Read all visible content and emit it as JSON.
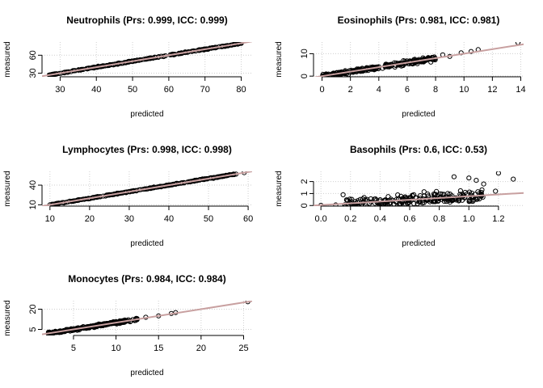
{
  "chart_data": [
    {
      "type": "scatter",
      "title": "Neutrophils (Prs: 0.999, ICC: 0.999)",
      "xlabel": "predicted",
      "ylabel": "measured",
      "xlim": [
        25,
        83
      ],
      "ylim": [
        24,
        82
      ],
      "xticks": [
        30,
        40,
        50,
        60,
        70,
        80
      ],
      "yticks": [
        30,
        60
      ],
      "grid": true,
      "fit_line": [
        [
          25,
          25
        ],
        [
          83,
          83
        ]
      ],
      "point_band": {
        "x_range": [
          27,
          80
        ],
        "slope": 1.0,
        "intercept": 0.0,
        "spread": 0.6
      },
      "outliers": [
        [
          27,
          27
        ],
        [
          31,
          31
        ],
        [
          35,
          35
        ],
        [
          78,
          78
        ],
        [
          80,
          80
        ]
      ]
    },
    {
      "type": "scatter",
      "title": "Eosinophils (Prs: 0.981, ICC: 0.981)",
      "xlabel": "predicted",
      "ylabel": "measured",
      "xlim": [
        -0.6,
        14.2
      ],
      "ylim": [
        -0.3,
        15.2
      ],
      "xticks": [
        0,
        2,
        4,
        6,
        8,
        10,
        12,
        14
      ],
      "yticks": [
        0,
        10
      ],
      "grid": true,
      "fit_line": [
        [
          -0.6,
          -0.6
        ],
        [
          14.2,
          14.2
        ]
      ],
      "point_band": {
        "x_range": [
          0,
          8
        ],
        "slope": 1.0,
        "intercept": 0.0,
        "spread": 0.7
      },
      "outliers": [
        [
          8.5,
          9.5
        ],
        [
          9,
          8.8
        ],
        [
          9.8,
          10.4
        ],
        [
          10.5,
          11
        ],
        [
          11,
          11.8
        ],
        [
          13.8,
          15
        ]
      ]
    },
    {
      "type": "scatter",
      "title": "Lymphocytes (Prs: 0.998, ICC: 0.998)",
      "xlabel": "predicted",
      "ylabel": "measured",
      "xlim": [
        8,
        61
      ],
      "ylim": [
        8,
        61
      ],
      "xticks": [
        10,
        20,
        30,
        40,
        50,
        60
      ],
      "yticks": [
        10,
        40
      ],
      "grid": true,
      "fit_line": [
        [
          8,
          8
        ],
        [
          61,
          61
        ]
      ],
      "point_band": {
        "x_range": [
          10,
          57
        ],
        "slope": 1.0,
        "intercept": 0.0,
        "spread": 0.5
      },
      "outliers": [
        [
          10,
          10
        ],
        [
          11,
          11
        ],
        [
          12,
          12
        ],
        [
          56,
          56
        ],
        [
          59,
          59
        ]
      ]
    },
    {
      "type": "scatter",
      "title": "Basophils (Prs: 0.6, ICC: 0.53)",
      "xlabel": "predicted",
      "ylabel": "measured",
      "xlim": [
        -0.05,
        1.37
      ],
      "ylim": [
        -0.05,
        2.85
      ],
      "xticks": [
        0.0,
        0.2,
        0.4,
        0.6,
        0.8,
        1.0,
        1.2
      ],
      "yticks": [
        0.0,
        1.0,
        2.0
      ],
      "grid": true,
      "fit_line": [
        [
          -0.05,
          0.0
        ],
        [
          1.37,
          1.05
        ]
      ],
      "point_band": {
        "x_range": [
          0.15,
          1.1
        ],
        "slope": 0.75,
        "intercept": 0.0,
        "spread": 0.35
      },
      "outliers": [
        [
          0.0,
          0.02
        ],
        [
          0.1,
          0.05
        ],
        [
          0.15,
          0.9
        ],
        [
          0.9,
          2.4
        ],
        [
          1.0,
          2.3
        ],
        [
          1.05,
          2.1
        ],
        [
          1.1,
          1.8
        ],
        [
          1.2,
          2.7
        ],
        [
          1.3,
          2.2
        ],
        [
          1.18,
          1.2
        ]
      ]
    },
    {
      "type": "scatter",
      "title": "Monocytes (Prs: 0.984, ICC: 0.984)",
      "xlabel": "predicted",
      "ylabel": "measured",
      "xlim": [
        1.3,
        26
      ],
      "ylim": [
        0.5,
        26.3
      ],
      "xticks": [
        5,
        10,
        15,
        20,
        25
      ],
      "yticks": [
        5,
        20
      ],
      "grid": true,
      "fit_line": [
        [
          1.3,
          1.3
        ],
        [
          26,
          26
        ]
      ],
      "point_band": {
        "x_range": [
          2,
          12.5
        ],
        "slope": 1.0,
        "intercept": 0.0,
        "spread": 0.6
      },
      "outliers": [
        [
          13.5,
          14
        ],
        [
          15,
          15
        ],
        [
          16.5,
          16.8
        ],
        [
          17,
          17.5
        ],
        [
          25.5,
          25.5
        ]
      ]
    }
  ]
}
